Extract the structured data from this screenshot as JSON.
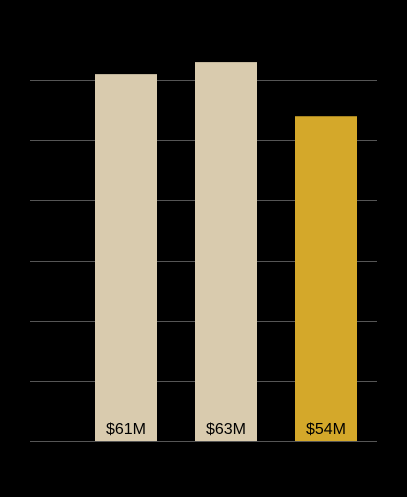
{
  "chart_data": {
    "type": "bar",
    "values": [
      61,
      63,
      54
    ],
    "value_labels": [
      "$61M",
      "$63M",
      "$54M"
    ],
    "colors": [
      "#d9cbae",
      "#d9cbae",
      "#d4a82a"
    ],
    "ylim": [
      0,
      70
    ],
    "yticks": [
      0,
      10,
      20,
      30,
      40,
      50,
      60
    ],
    "grid": true
  }
}
